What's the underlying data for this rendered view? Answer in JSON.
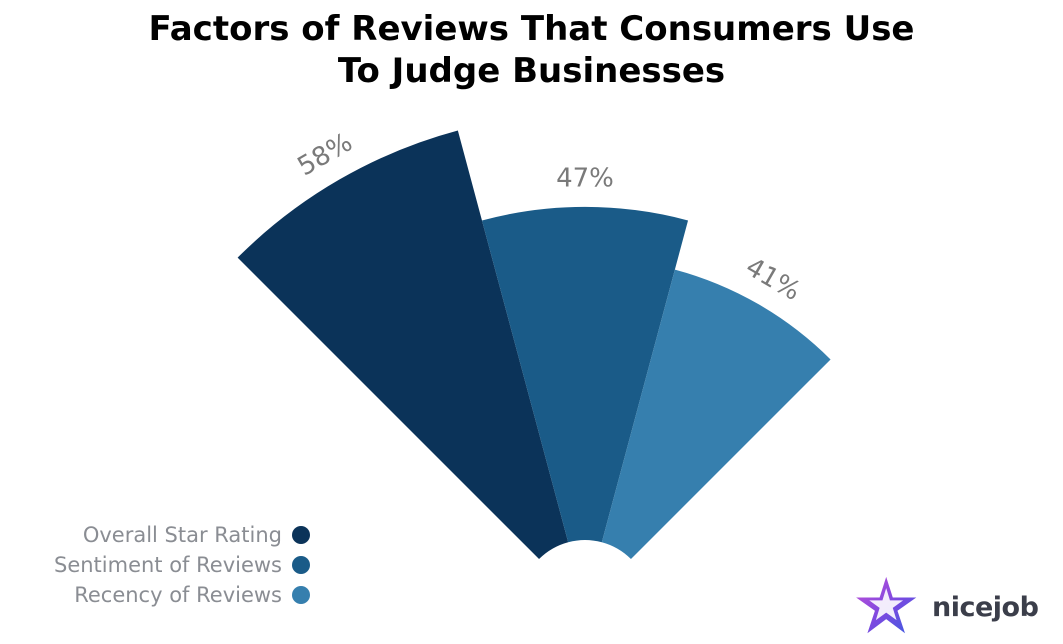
{
  "chart_data": {
    "type": "polar-area",
    "title_lines": [
      "Factors of Reviews That Consumers Use",
      "To Judge Businesses"
    ],
    "categories": [
      "Overall Star Rating",
      "Sentiment of Reviews",
      "Recency of Reviews"
    ],
    "values": [
      58,
      47,
      41
    ],
    "value_labels": [
      "58%",
      "47%",
      "41%"
    ],
    "unit": "%",
    "colors": [
      "#0b3359",
      "#1a5b88",
      "#367fae"
    ],
    "legend_position": "bottom-left"
  },
  "brand": {
    "name": "nicejob",
    "icon": "star-logo-icon"
  }
}
